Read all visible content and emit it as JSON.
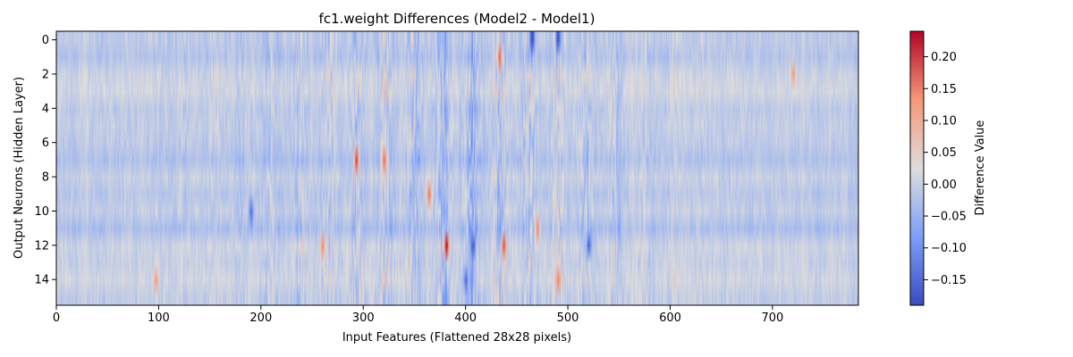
{
  "chart_data": {
    "type": "heatmap",
    "title": "fc1.weight Differences (Model2 - Model1)",
    "xlabel": "Input Features (Flattened 28x28 pixels)",
    "ylabel": "Output Neurons (Hidden Layer)",
    "colorbar_label": "Difference Value",
    "colormap": "coolwarm",
    "n_rows": 16,
    "n_cols": 784,
    "xlim": [
      0,
      784
    ],
    "ylim": [
      15.5,
      -0.5
    ],
    "x_ticks": [
      0,
      100,
      200,
      300,
      400,
      500,
      600,
      700
    ],
    "y_ticks": [
      0,
      2,
      4,
      6,
      8,
      10,
      12,
      14
    ],
    "value_range": [
      -0.19,
      0.24
    ],
    "colorbar_ticks": [
      -0.15,
      -0.1,
      -0.05,
      0.0,
      0.05,
      0.1,
      0.15,
      0.2
    ],
    "colorbar_tick_labels": [
      "−0.15",
      "−0.10",
      "−0.05",
      "0.00",
      "0.05",
      "0.10",
      "0.15",
      "0.20"
    ],
    "row_bias": [
      -0.02,
      -0.04,
      0.01,
      0.02,
      -0.02,
      -0.01,
      -0.02,
      -0.05,
      0.0,
      -0.03,
      -0.01,
      -0.06,
      0.01,
      0.0,
      0.02,
      -0.01
    ],
    "hotspots": [
      {
        "row": 7,
        "col": 293,
        "value": 0.2
      },
      {
        "row": 7,
        "col": 320,
        "value": 0.17
      },
      {
        "row": 12,
        "col": 381,
        "value": 0.24
      },
      {
        "row": 12,
        "col": 407,
        "value": -0.17
      },
      {
        "row": 12,
        "col": 437,
        "value": 0.18
      },
      {
        "row": 1,
        "col": 433,
        "value": 0.18
      },
      {
        "row": 0,
        "col": 465,
        "value": -0.19
      },
      {
        "row": 0,
        "col": 490,
        "value": -0.18
      },
      {
        "row": 14,
        "col": 97,
        "value": 0.12
      },
      {
        "row": 14,
        "col": 490,
        "value": 0.15
      },
      {
        "row": 2,
        "col": 720,
        "value": 0.12
      },
      {
        "row": 9,
        "col": 364,
        "value": 0.16
      },
      {
        "row": 12,
        "col": 520,
        "value": -0.16
      },
      {
        "row": 10,
        "col": 190,
        "value": -0.14
      },
      {
        "row": 12,
        "col": 260,
        "value": 0.14
      },
      {
        "row": 11,
        "col": 470,
        "value": 0.15
      },
      {
        "row": 14,
        "col": 400,
        "value": -0.15
      }
    ]
  }
}
